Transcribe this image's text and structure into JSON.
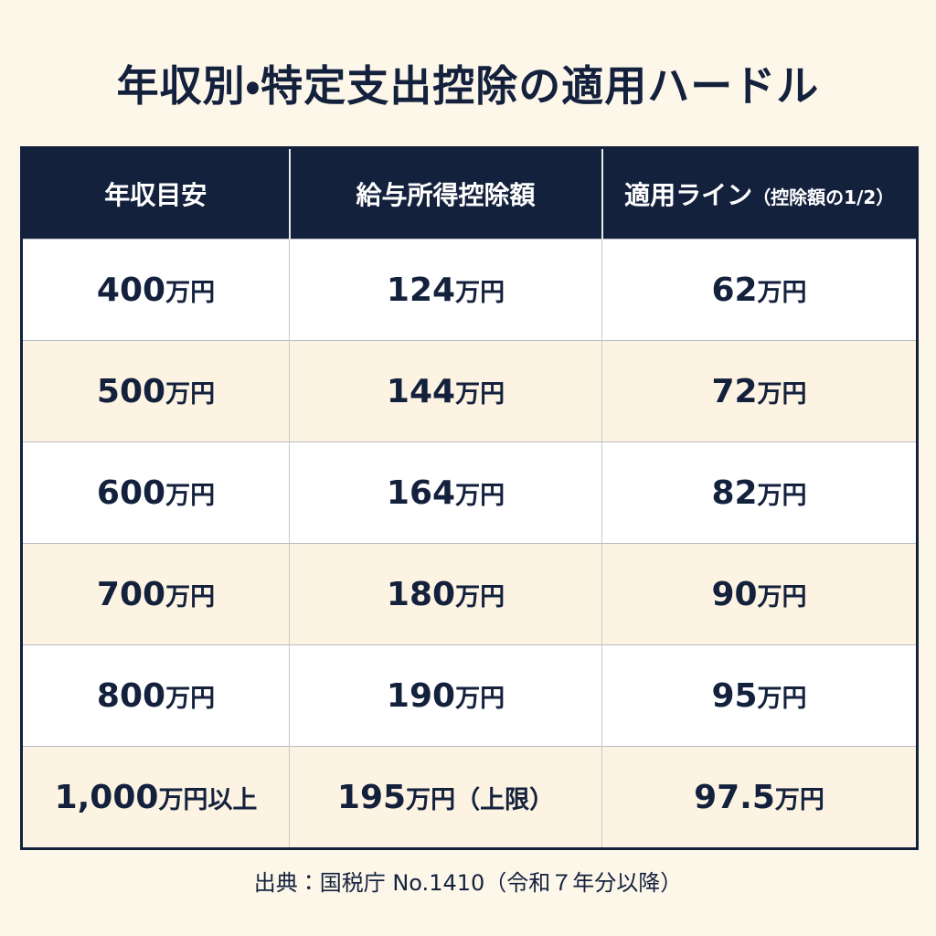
{
  "header": {
    "title": "年収別・特定支出控除の適用ハードル"
  },
  "table": {
    "columns": [
      "年収目安",
      "給与所得控除額",
      "適用ライン（控除額の1/2）"
    ],
    "rows": [
      [
        "400万円",
        "124万円",
        "62万円"
      ],
      [
        "500万円",
        "144万円",
        "72万円"
      ],
      [
        "600万円",
        "164万円",
        "82万円"
      ],
      [
        "700万円",
        "180万円",
        "90万円"
      ],
      [
        "800万円",
        "190万円",
        "95万円"
      ],
      [
        "1,000万円以上",
        "195万円（上限）",
        "97.5万円"
      ]
    ]
  },
  "footer": {
    "source": "出典：国税庁 No.1410（令和７年分以降）"
  }
}
